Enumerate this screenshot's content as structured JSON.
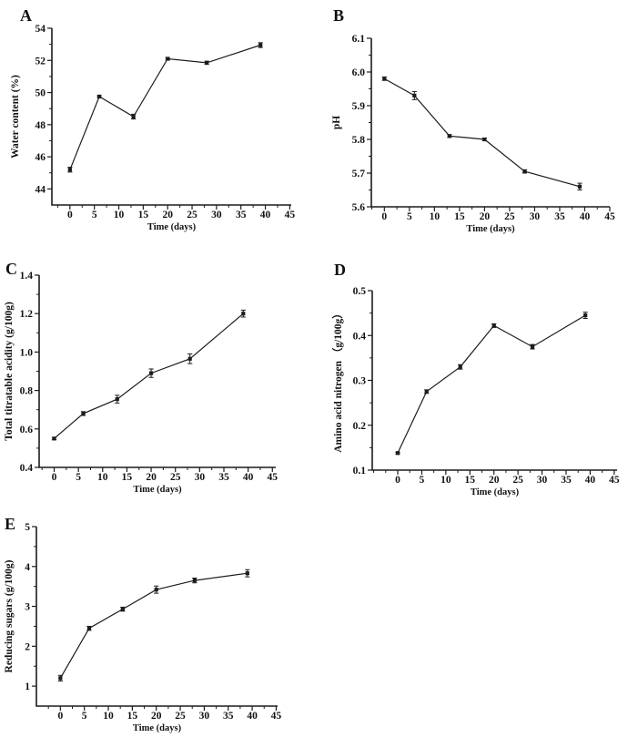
{
  "figure": {
    "description": "Five-panel line chart figure of fermentation time-course measurements",
    "background_color": "#ffffff",
    "line_color": "#1c1c1c",
    "marker": "square"
  },
  "chart_data": [
    {
      "type": "line",
      "letter": "A",
      "xlabel": "Time (days)",
      "ylabel": "Water content (%)",
      "x": [
        0,
        6,
        13,
        20,
        28,
        39
      ],
      "y": [
        45.2,
        49.75,
        48.5,
        52.1,
        51.85,
        52.95
      ],
      "yerr": [
        0.15,
        0.06,
        0.15,
        0.08,
        0.1,
        0.15
      ],
      "xlim": [
        -3.7,
        45.3
      ],
      "ylim": [
        43,
        54
      ],
      "xticks": [
        0,
        5,
        10,
        15,
        20,
        25,
        30,
        35,
        40,
        45
      ],
      "xtick_labels": [
        "0",
        "5",
        "10",
        "15",
        "20",
        "25",
        "30",
        "35",
        "40",
        "45"
      ],
      "x_minor_step": 2.5,
      "yticks": [
        44,
        46,
        48,
        50,
        52,
        54
      ],
      "ytick_labels": [
        "44",
        "46",
        "48",
        "50",
        "52",
        "54"
      ],
      "y_minor_step": 1,
      "grid": false,
      "legend": null
    },
    {
      "type": "line",
      "letter": "B",
      "xlabel": "Time (days)",
      "ylabel": "pH",
      "x": [
        0,
        6,
        13,
        20,
        28,
        39
      ],
      "y": [
        5.98,
        5.93,
        5.81,
        5.8,
        5.705,
        5.66
      ],
      "yerr": [
        0.005,
        0.012,
        0.004,
        0.004,
        0.005,
        0.01
      ],
      "xlim": [
        -2.6,
        45.0
      ],
      "ylim": [
        5.6,
        6.1
      ],
      "xticks": [
        0,
        5,
        10,
        15,
        20,
        25,
        30,
        35,
        40,
        45
      ],
      "xtick_labels": [
        "0",
        "5",
        "10",
        "15",
        "20",
        "25",
        "30",
        "35",
        "40",
        "45"
      ],
      "x_minor_step": 2.5,
      "yticks": [
        5.6,
        5.7,
        5.8,
        5.9,
        6.0,
        6.1
      ],
      "ytick_labels": [
        "5.6",
        "5.7",
        "5.8",
        "5.9",
        "6.0",
        "6.1"
      ],
      "y_minor_step": 0.05,
      "grid": false,
      "legend": null
    },
    {
      "type": "line",
      "letter": "C",
      "xlabel": "Time (days)",
      "ylabel": "Total titratable acidity (g/100g)",
      "x": [
        0,
        6,
        13,
        20,
        28,
        39
      ],
      "y": [
        0.55,
        0.68,
        0.755,
        0.89,
        0.965,
        1.2
      ],
      "yerr": [
        0.006,
        0.01,
        0.02,
        0.022,
        0.025,
        0.018
      ],
      "xlim": [
        -3.1,
        45.7
      ],
      "ylim": [
        0.4,
        1.4
      ],
      "xticks": [
        0,
        5,
        10,
        15,
        20,
        25,
        30,
        35,
        40,
        45
      ],
      "xtick_labels": [
        "0",
        "5",
        "10",
        "15",
        "20",
        "25",
        "30",
        "35",
        "40",
        "45"
      ],
      "x_minor_step": 2.5,
      "yticks": [
        0.4,
        0.6,
        0.8,
        1.0,
        1.2,
        1.4
      ],
      "ytick_labels": [
        "0.4",
        "0.6",
        "0.8",
        "1.0",
        "1.2",
        "1.4"
      ],
      "y_minor_step": 0.1,
      "grid": false,
      "legend": null
    },
    {
      "type": "line",
      "letter": "D",
      "xlabel": "Time (days)",
      "ylabel": "Amino acid nitrogen （g/100g）",
      "x": [
        0,
        6,
        13,
        20,
        28,
        39
      ],
      "y": [
        0.138,
        0.275,
        0.33,
        0.422,
        0.375,
        0.445
      ],
      "yerr": [
        0.002,
        0.004,
        0.005,
        0.004,
        0.005,
        0.007
      ],
      "xlim": [
        -5.3,
        45.6
      ],
      "ylim": [
        0.1,
        0.5
      ],
      "xticks": [
        0,
        5,
        10,
        15,
        20,
        25,
        30,
        35,
        40,
        45
      ],
      "xtick_labels": [
        "0",
        "5",
        "10",
        "15",
        "20",
        "25",
        "30",
        "35",
        "40",
        "45"
      ],
      "x_minor_step": 2.5,
      "yticks": [
        0.1,
        0.2,
        0.3,
        0.4,
        0.5
      ],
      "ytick_labels": [
        "0.1",
        "0.2",
        "0.3",
        "0.4",
        "0.5"
      ],
      "y_minor_step": 0.05,
      "grid": false,
      "legend": null
    },
    {
      "type": "line",
      "letter": "E",
      "xlabel": "Time (days)",
      "ylabel": "Reducing sugars (g/100g)",
      "x": [
        0,
        6,
        13,
        20,
        28,
        39
      ],
      "y": [
        1.2,
        2.45,
        2.93,
        3.42,
        3.65,
        3.83
      ],
      "yerr": [
        0.07,
        0.05,
        0.05,
        0.09,
        0.06,
        0.09
      ],
      "xlim": [
        -5.0,
        45.3
      ],
      "ylim": [
        0.5,
        5
      ],
      "xticks": [
        0,
        5,
        10,
        15,
        20,
        25,
        30,
        35,
        40,
        45
      ],
      "xtick_labels": [
        "0",
        "5",
        "10",
        "15",
        "20",
        "25",
        "30",
        "35",
        "40",
        "45"
      ],
      "x_minor_step": 2.5,
      "yticks": [
        1,
        2,
        3,
        4,
        5
      ],
      "ytick_labels": [
        "1",
        "2",
        "3",
        "4",
        "5"
      ],
      "y_minor_step": 0.5,
      "grid": false,
      "legend": null
    }
  ]
}
